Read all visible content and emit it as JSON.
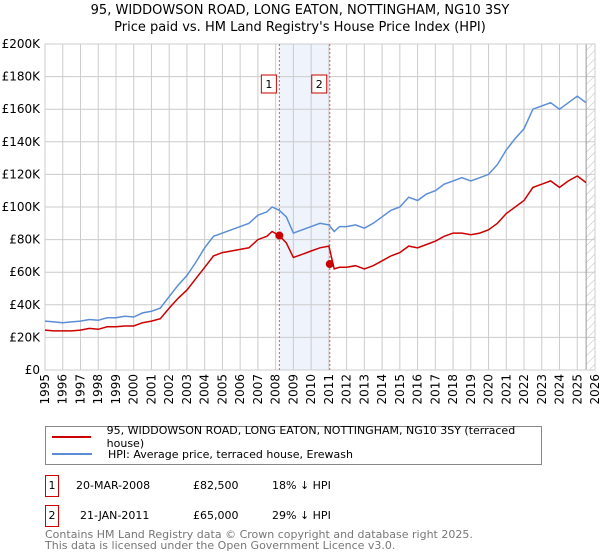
{
  "chart_data": {
    "type": "line",
    "title": "95, WIDDOWSON ROAD, LONG EATON, NOTTINGHAM, NG10 3SY",
    "subtitle": "Price paid vs. HM Land Registry's House Price Index (HPI)",
    "xlim": [
      1995,
      2026
    ],
    "ylim": [
      0,
      200000
    ],
    "y_ticks": [
      0,
      20000,
      40000,
      60000,
      80000,
      100000,
      120000,
      140000,
      160000,
      180000,
      200000
    ],
    "y_tick_labels": [
      "£0",
      "£20K",
      "£40K",
      "£60K",
      "£80K",
      "£100K",
      "£120K",
      "£140K",
      "£160K",
      "£180K",
      "£200K"
    ],
    "x_ticks": [
      "1995",
      "1996",
      "1997",
      "1998",
      "1999",
      "2000",
      "2001",
      "2002",
      "2003",
      "2004",
      "2005",
      "2006",
      "2007",
      "2008",
      "2009",
      "2010",
      "2011",
      "2012",
      "2013",
      "2014",
      "2015",
      "2016",
      "2017",
      "2018",
      "2019",
      "2020",
      "2021",
      "2022",
      "2023",
      "2024",
      "2025",
      "2026"
    ],
    "grid": true,
    "x": [
      1995,
      1995.5,
      1996,
      1996.5,
      1997,
      1997.5,
      1998,
      1998.5,
      1999,
      1999.5,
      2000,
      2000.5,
      2001,
      2001.5,
      2002,
      2002.5,
      2003,
      2003.5,
      2004,
      2004.5,
      2005,
      2005.5,
      2006,
      2006.5,
      2007,
      2007.5,
      2007.8,
      2008.2,
      2008.6,
      2009,
      2009.5,
      2010,
      2010.5,
      2011,
      2011.3,
      2011.6,
      2012,
      2012.5,
      2013,
      2013.5,
      2014,
      2014.5,
      2015,
      2015.5,
      2016,
      2016.5,
      2017,
      2017.5,
      2018,
      2018.5,
      2019,
      2019.5,
      2020,
      2020.5,
      2021,
      2021.5,
      2022,
      2022.5,
      2023,
      2023.5,
      2024,
      2024.5,
      2025,
      2025.5
    ],
    "series": [
      {
        "name": "95, WIDDOWSON ROAD, LONG EATON, NOTTINGHAM, NG10 3SY (terraced house)",
        "color": "#cc0000",
        "values": [
          24500,
          24000,
          24000,
          24000,
          24500,
          25500,
          25000,
          26500,
          26500,
          27000,
          27000,
          29000,
          30000,
          31500,
          38000,
          44000,
          49000,
          56000,
          63000,
          70000,
          72000,
          73000,
          74000,
          75000,
          80000,
          82000,
          85000,
          82500,
          78000,
          69000,
          71000,
          73000,
          75000,
          76000,
          62000,
          63000,
          63000,
          64000,
          62000,
          64000,
          67000,
          70000,
          72000,
          76000,
          75000,
          77000,
          79000,
          82000,
          84000,
          84000,
          83000,
          84000,
          86000,
          90000,
          96000,
          100000,
          104000,
          112000,
          114000,
          116000,
          112000,
          116000,
          119000,
          115000
        ]
      },
      {
        "name": "HPI: Average price, terraced house, Erewash",
        "color": "#5b8ed6",
        "values": [
          30000,
          29500,
          29000,
          29500,
          30000,
          31000,
          30500,
          32000,
          32000,
          33000,
          32500,
          35000,
          36000,
          38000,
          45000,
          52000,
          58000,
          66000,
          75000,
          82000,
          84000,
          86000,
          88000,
          90000,
          95000,
          97000,
          100000,
          98000,
          94000,
          84000,
          86000,
          88000,
          90000,
          89000,
          85000,
          88000,
          88000,
          89000,
          87000,
          90000,
          94000,
          98000,
          100000,
          106000,
          104000,
          108000,
          110000,
          114000,
          116000,
          118000,
          116000,
          118000,
          120000,
          126000,
          135000,
          142000,
          148000,
          160000,
          162000,
          164000,
          160000,
          164000,
          168000,
          164000
        ]
      }
    ],
    "sales": [
      {
        "label": "1",
        "x": 2008.21,
        "value": 82500
      },
      {
        "label": "2",
        "x": 2011.05,
        "value": 65000
      }
    ],
    "shaded_range": [
      2008.21,
      2011.05
    ],
    "future_hatch_from": 2025.5,
    "legend_placement": "below"
  },
  "transactions": [
    {
      "num": "1",
      "date": "20-MAR-2008",
      "price": "£82,500",
      "hpi": "18% ↓ HPI"
    },
    {
      "num": "2",
      "date": "21-JAN-2011",
      "price": "£65,000",
      "hpi": "29% ↓ HPI"
    }
  ],
  "footer": [
    "Contains HM Land Registry data © Crown copyright and database right 2025.",
    "This data is licensed under the Open Government Licence v3.0."
  ]
}
